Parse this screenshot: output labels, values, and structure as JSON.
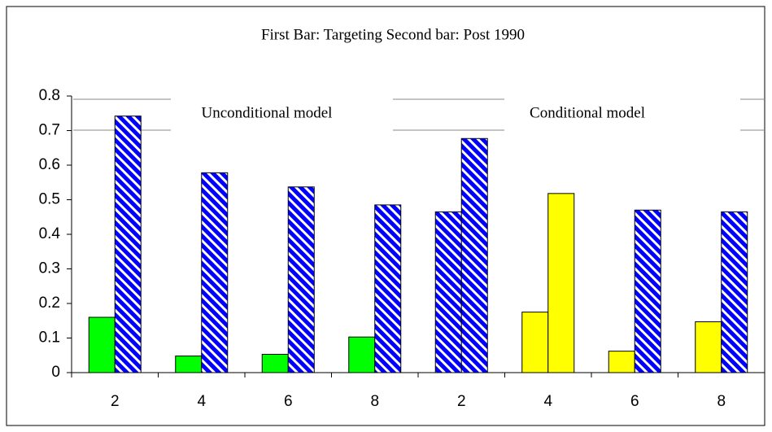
{
  "chart_data": {
    "type": "bar",
    "title": "First Bar: Targeting  Second bar: Post 1990",
    "annotations": [
      "Unconditional model",
      "Conditional model"
    ],
    "categories": [
      "2",
      "4",
      "6",
      "8",
      "2",
      "4",
      "6",
      "8"
    ],
    "series": [
      {
        "values": [
          0.16,
          0.048,
          0.053,
          0.103,
          0.465,
          0.175,
          0.062,
          0.147
        ],
        "colors": [
          "#00ff00",
          "#00ff00",
          "#00ff00",
          "#00ff00",
          "#0000ff",
          "#ffff00",
          "#ffff00",
          "#ffff00"
        ],
        "patterns": [
          "solid",
          "solid",
          "solid",
          "solid",
          "hatch",
          "solid",
          "solid",
          "solid"
        ]
      },
      {
        "values": [
          0.742,
          0.578,
          0.537,
          0.485,
          0.677,
          0.518,
          0.47,
          0.465
        ],
        "colors": [
          "#0000ff",
          "#0000ff",
          "#0000ff",
          "#0000ff",
          "#0000ff",
          "#ffff00",
          "#0000ff",
          "#0000ff"
        ],
        "patterns": [
          "hatch",
          "hatch",
          "hatch",
          "hatch",
          "hatch",
          "solid",
          "hatch",
          "hatch"
        ]
      }
    ],
    "ylim": [
      0,
      0.8
    ],
    "yticks": [
      0,
      0.1,
      0.2,
      0.3,
      0.4,
      0.5,
      0.6,
      0.7,
      0.8
    ],
    "grid": false
  }
}
